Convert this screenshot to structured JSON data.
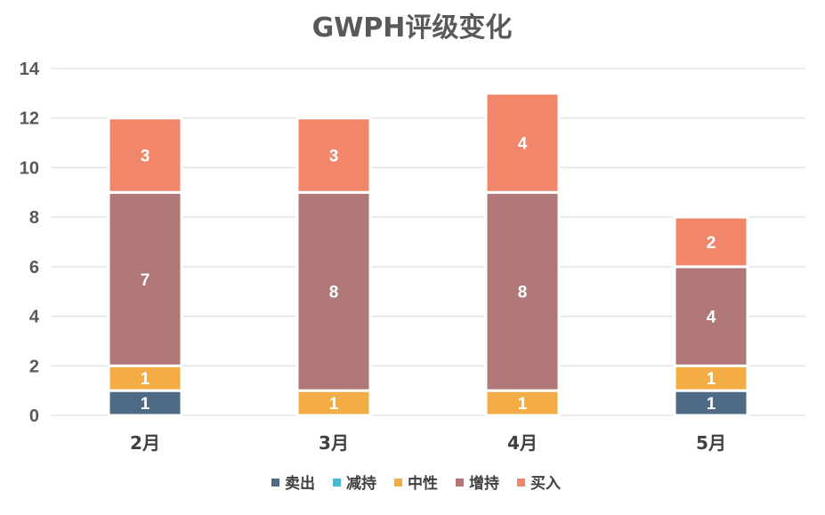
{
  "chart_data": {
    "type": "bar",
    "stacked": true,
    "title": "GWPH评级变化",
    "categories": [
      "2月",
      "3月",
      "4月",
      "5月"
    ],
    "ylim": [
      0,
      14
    ],
    "yticks": [
      0,
      2,
      4,
      6,
      8,
      10,
      12,
      14
    ],
    "grid": true,
    "legend_position": "bottom",
    "series": [
      {
        "name": "卖出",
        "color": "#4e6a85",
        "values": [
          1,
          0,
          0,
          1
        ]
      },
      {
        "name": "减持",
        "color": "#4bb8d0",
        "values": [
          0,
          0,
          0,
          0
        ]
      },
      {
        "name": "中性",
        "color": "#f4ac45",
        "values": [
          1,
          1,
          1,
          1
        ]
      },
      {
        "name": "增持",
        "color": "#b17879",
        "values": [
          7,
          8,
          8,
          4
        ]
      },
      {
        "name": "买入",
        "color": "#f2866a",
        "values": [
          3,
          3,
          4,
          2
        ]
      }
    ]
  }
}
